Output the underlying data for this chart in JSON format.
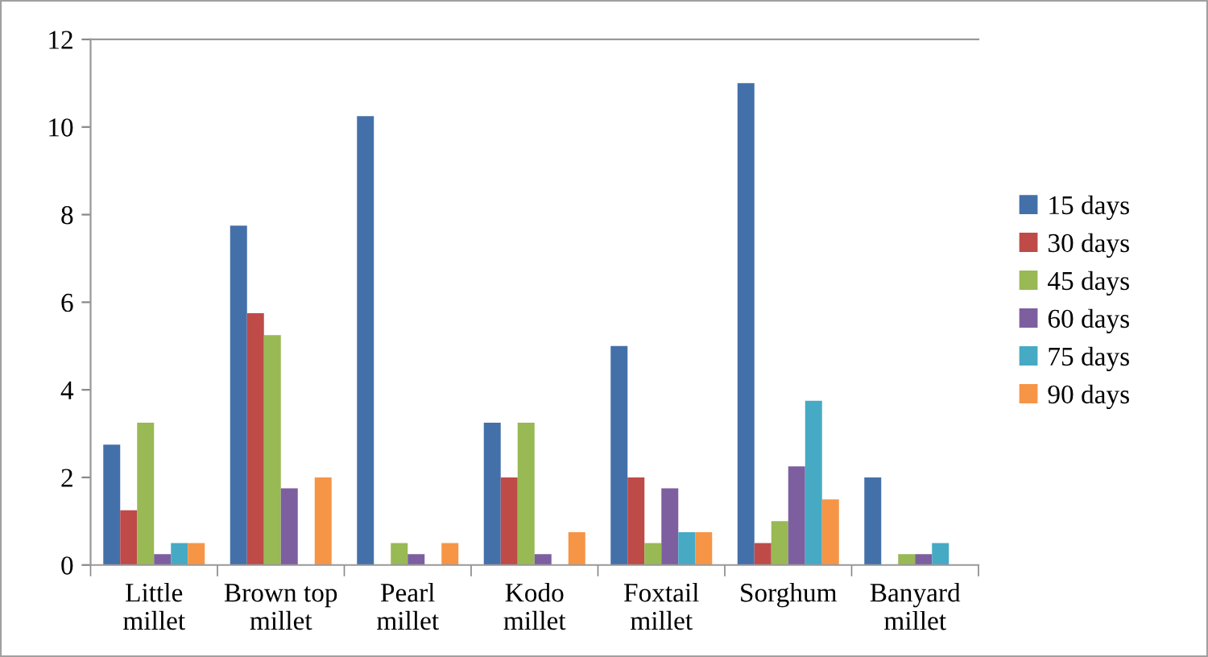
{
  "chart_data": {
    "type": "bar",
    "categories": [
      "Little\nmillet",
      "Brown top\nmillet",
      "Pearl\nmillet",
      "Kodo\nmillet",
      "Foxtail\nmillet",
      "Sorghum",
      "Banyard\nmillet"
    ],
    "series": [
      {
        "name": "15 days",
        "color": "#4470aa",
        "values": [
          2.75,
          7.75,
          10.25,
          3.25,
          5,
          11,
          2
        ]
      },
      {
        "name": "30 days",
        "color": "#be4b48",
        "values": [
          1.25,
          5.75,
          0,
          2,
          2,
          0.5,
          0
        ]
      },
      {
        "name": "45 days",
        "color": "#98b954",
        "values": [
          3.25,
          5.25,
          0.5,
          3.25,
          0.5,
          1,
          0.25
        ]
      },
      {
        "name": "60 days",
        "color": "#7d5fa0",
        "values": [
          0.25,
          1.75,
          0.25,
          0.25,
          1.75,
          2.25,
          0.25
        ]
      },
      {
        "name": "75 days",
        "color": "#46aac5",
        "values": [
          0.5,
          0,
          0,
          0,
          0.75,
          3.75,
          0.5
        ]
      },
      {
        "name": "90 days",
        "color": "#f69546",
        "values": [
          0.5,
          2,
          0.5,
          0.75,
          0.75,
          1.5,
          0
        ]
      }
    ],
    "ylim": [
      0,
      12
    ],
    "yticks": [
      0,
      2,
      4,
      6,
      8,
      10,
      12
    ],
    "grid": false,
    "legend": "right"
  }
}
